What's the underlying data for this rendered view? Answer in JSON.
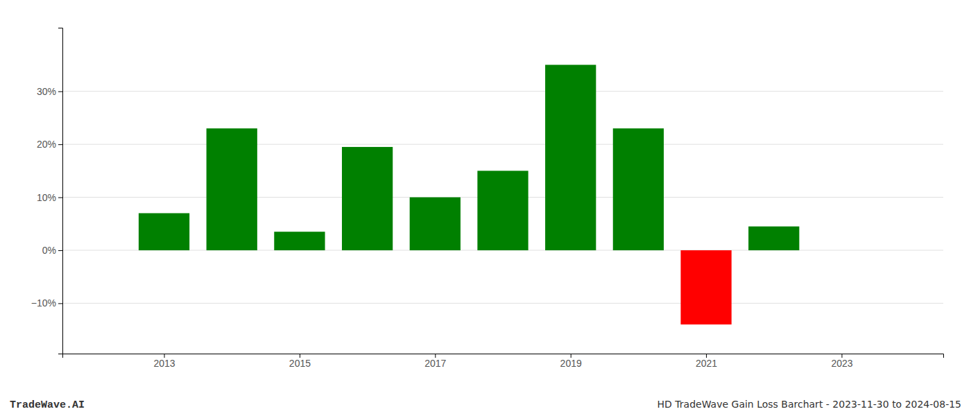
{
  "chart_data": {
    "type": "bar",
    "x": [
      2013,
      2014,
      2015,
      2016,
      2017,
      2018,
      2019,
      2020,
      2021,
      2022
    ],
    "values": [
      0.07,
      0.23,
      0.035,
      0.195,
      0.1,
      0.15,
      0.35,
      0.23,
      -0.14,
      0.045
    ],
    "colors": [
      "#008000",
      "#008000",
      "#008000",
      "#008000",
      "#008000",
      "#008000",
      "#008000",
      "#008000",
      "#ff0000",
      "#008000"
    ],
    "xlim": [
      2011.5,
      2024.5
    ],
    "ylim": [
      -0.195,
      0.42
    ],
    "xticks": [
      2013,
      2015,
      2017,
      2019,
      2021,
      2023
    ],
    "yticks": [
      {
        "value": -0.1,
        "label": "−10%"
      },
      {
        "value": 0.0,
        "label": "0%"
      },
      {
        "value": 0.1,
        "label": "10%"
      },
      {
        "value": 0.2,
        "label": "20%"
      },
      {
        "value": 0.3,
        "label": "30%"
      }
    ],
    "grid": true,
    "annotations": [
      "TradeWave.AI",
      "HD TradeWave Gain Loss Barchart - 2023-11-30 to 2024-08-15"
    ]
  }
}
